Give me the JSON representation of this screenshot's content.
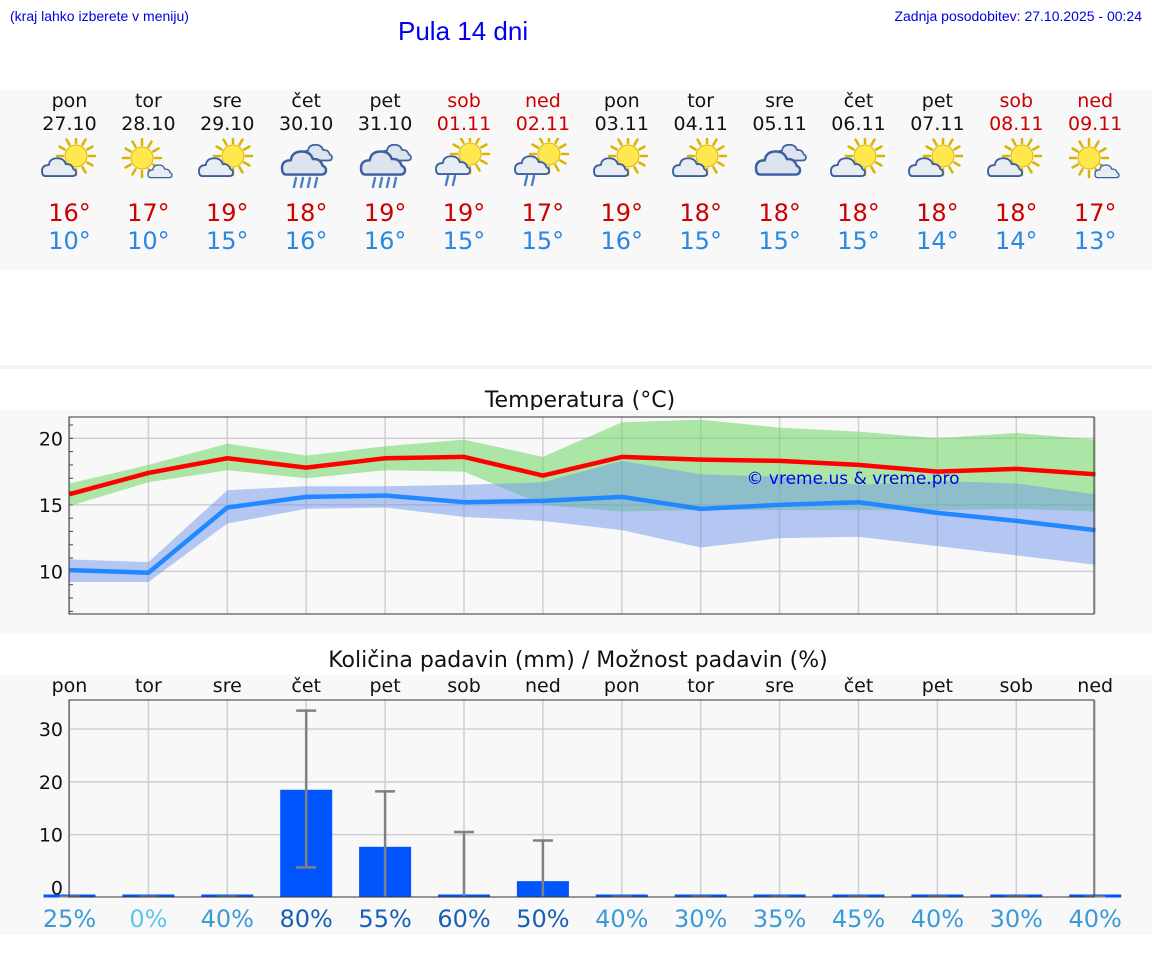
{
  "header": {
    "hint": "(kraj lahko izberete v meniju)",
    "title": "Pula 14 dni",
    "updated": "Zadnja posodobitev: 27.10.2025 - 00:24"
  },
  "days": [
    {
      "name": "pon",
      "date": "27.10",
      "icon": "sun-cloud-icon",
      "max": "16°",
      "min": "10°",
      "weekend": false
    },
    {
      "name": "tor",
      "date": "28.10",
      "icon": "sun-small-cloud-icon",
      "max": "17°",
      "min": "10°",
      "weekend": false
    },
    {
      "name": "sre",
      "date": "29.10",
      "icon": "sun-cloud-icon",
      "max": "19°",
      "min": "15°",
      "weekend": false
    },
    {
      "name": "čet",
      "date": "30.10",
      "icon": "rain-cloud-icon",
      "max": "18°",
      "min": "16°",
      "weekend": false
    },
    {
      "name": "pet",
      "date": "31.10",
      "icon": "rain-cloud-icon",
      "max": "19°",
      "min": "16°",
      "weekend": false
    },
    {
      "name": "sob",
      "date": "01.11",
      "icon": "sun-cloud-rain-icon",
      "max": "19°",
      "min": "15°",
      "weekend": true
    },
    {
      "name": "ned",
      "date": "02.11",
      "icon": "sun-cloud-rain-icon",
      "max": "17°",
      "min": "15°",
      "weekend": true
    },
    {
      "name": "pon",
      "date": "03.11",
      "icon": "sun-cloud-icon",
      "max": "19°",
      "min": "16°",
      "weekend": false
    },
    {
      "name": "tor",
      "date": "04.11",
      "icon": "sun-cloud-icon",
      "max": "18°",
      "min": "15°",
      "weekend": false
    },
    {
      "name": "sre",
      "date": "05.11",
      "icon": "cloud-icon",
      "max": "18°",
      "min": "15°",
      "weekend": false
    },
    {
      "name": "čet",
      "date": "06.11",
      "icon": "sun-cloud-icon",
      "max": "18°",
      "min": "15°",
      "weekend": false
    },
    {
      "name": "pet",
      "date": "07.11",
      "icon": "sun-cloud-icon",
      "max": "18°",
      "min": "14°",
      "weekend": false
    },
    {
      "name": "sob",
      "date": "08.11",
      "icon": "sun-cloud-icon",
      "max": "18°",
      "min": "14°",
      "weekend": true
    },
    {
      "name": "ned",
      "date": "09.11",
      "icon": "sun-small-cloud-icon",
      "max": "17°",
      "min": "13°",
      "weekend": true
    }
  ],
  "chart_data": [
    {
      "type": "line",
      "title": "Temperatura (°C)",
      "watermark": "© vreme.us & vreme.pro",
      "ylim": [
        6.8,
        21.6
      ],
      "yticks": [
        "10",
        "15",
        "20"
      ],
      "x": [
        0,
        1,
        2,
        3,
        4,
        5,
        6,
        7,
        8,
        9,
        10,
        11,
        12,
        13
      ],
      "series": [
        {
          "name": "max",
          "color": "#ff0000",
          "values": [
            15.8,
            17.4,
            18.5,
            17.8,
            18.5,
            18.6,
            17.2,
            18.6,
            18.4,
            18.3,
            18.0,
            17.5,
            17.7,
            17.3
          ],
          "band_low": [
            14.9,
            16.7,
            17.6,
            17.0,
            17.6,
            17.5,
            15.0,
            14.5,
            14.6,
            14.6,
            14.6,
            14.6,
            14.7,
            14.5
          ],
          "band_high": [
            16.6,
            18.0,
            19.6,
            18.7,
            19.4,
            19.9,
            18.6,
            21.2,
            21.4,
            20.8,
            20.5,
            20.0,
            20.4,
            19.9
          ]
        },
        {
          "name": "min",
          "color": "#2288ff",
          "values": [
            10.1,
            9.9,
            14.8,
            15.6,
            15.7,
            15.2,
            15.3,
            15.6,
            14.7,
            15.0,
            15.2,
            14.4,
            13.8,
            13.1
          ],
          "band_low": [
            9.2,
            9.2,
            13.6,
            14.7,
            14.8,
            14.1,
            13.8,
            13.1,
            11.8,
            12.5,
            12.6,
            11.9,
            11.2,
            10.5
          ],
          "band_high": [
            10.9,
            10.7,
            16.1,
            16.4,
            16.4,
            16.5,
            16.7,
            18.3,
            17.3,
            17.1,
            16.5,
            16.8,
            16.6,
            15.8
          ]
        }
      ]
    },
    {
      "type": "bar",
      "title": "Količina padavin (mm) / Možnost padavin (%)",
      "ylim": [
        -1.8,
        35.5
      ],
      "yticks": [
        "0",
        "10",
        "20",
        "30"
      ],
      "categories": [
        "pon",
        "tor",
        "sre",
        "čet",
        "pet",
        "sob",
        "ned",
        "pon",
        "tor",
        "sre",
        "čet",
        "pet",
        "sob",
        "ned"
      ],
      "values": [
        0,
        0,
        0,
        18.5,
        7.7,
        0.2,
        1.2,
        0,
        0,
        0,
        0,
        0,
        0,
        0
      ],
      "err_low": [
        0,
        0,
        0,
        3.8,
        0,
        0,
        0,
        0,
        0,
        0,
        0,
        0,
        0,
        0
      ],
      "err_high": [
        0,
        0,
        0,
        33.5,
        18.2,
        10.5,
        8.9,
        0,
        0,
        0,
        0,
        0,
        0,
        0
      ],
      "chance": [
        "25%",
        "0%",
        "40%",
        "80%",
        "55%",
        "60%",
        "50%",
        "40%",
        "30%",
        "35%",
        "45%",
        "40%",
        "30%",
        "40%"
      ],
      "chance_values": [
        25,
        0,
        40,
        80,
        55,
        60,
        50,
        40,
        30,
        35,
        45,
        40,
        30,
        40
      ]
    }
  ]
}
